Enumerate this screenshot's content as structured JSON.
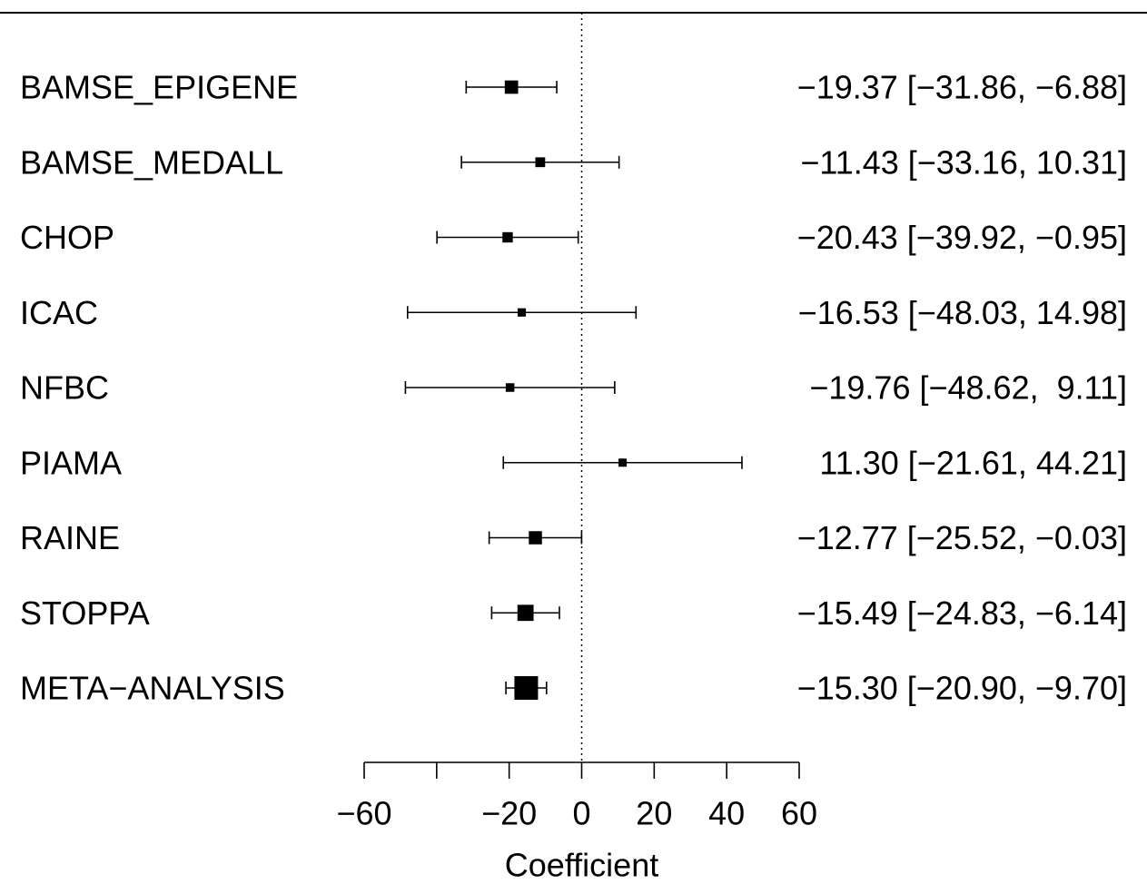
{
  "chart_data": {
    "type": "forest",
    "title": "",
    "xlabel": "Coefficient",
    "ylabel": "",
    "xlim": [
      -60,
      60
    ],
    "xticks": [
      -60,
      -40,
      -20,
      0,
      20,
      40,
      60
    ],
    "xtick_labels": [
      "−60",
      "",
      "−20",
      "0",
      "20",
      "40",
      "60"
    ],
    "reference_line": 0,
    "studies": [
      {
        "name": "BAMSE_EPIGENE",
        "estimate": -19.37,
        "lower": -31.86,
        "upper": -6.88,
        "label": "−19.37 [−31.86, −6.88]"
      },
      {
        "name": "BAMSE_MEDALL",
        "estimate": -11.43,
        "lower": -33.16,
        "upper": 10.31,
        "label": "−11.43 [−33.16, 10.31]"
      },
      {
        "name": "CHOP",
        "estimate": -20.43,
        "lower": -39.92,
        "upper": -0.95,
        "label": "−20.43 [−39.92, −0.95]"
      },
      {
        "name": "ICAC",
        "estimate": -16.53,
        "lower": -48.03,
        "upper": 14.98,
        "label": "−16.53 [−48.03, 14.98]"
      },
      {
        "name": "NFBC",
        "estimate": -19.76,
        "lower": -48.62,
        "upper": 9.11,
        "label": "−19.76 [−48.62,  9.11]"
      },
      {
        "name": "PIAMA",
        "estimate": 11.3,
        "lower": -21.61,
        "upper": 44.21,
        "label": "11.30 [−21.61, 44.21]"
      },
      {
        "name": "RAINE",
        "estimate": -12.77,
        "lower": -25.52,
        "upper": -0.03,
        "label": "−12.77 [−25.52, −0.03]"
      },
      {
        "name": "STOPPA",
        "estimate": -15.49,
        "lower": -24.83,
        "upper": -6.14,
        "label": "−15.49 [−24.83, −6.14]"
      },
      {
        "name": "META−ANALYSIS",
        "estimate": -15.3,
        "lower": -20.9,
        "upper": -9.7,
        "label": "−15.30 [−20.90, −9.70]"
      }
    ],
    "colors": {
      "marks": "#000000",
      "background": "#ffffff"
    }
  }
}
